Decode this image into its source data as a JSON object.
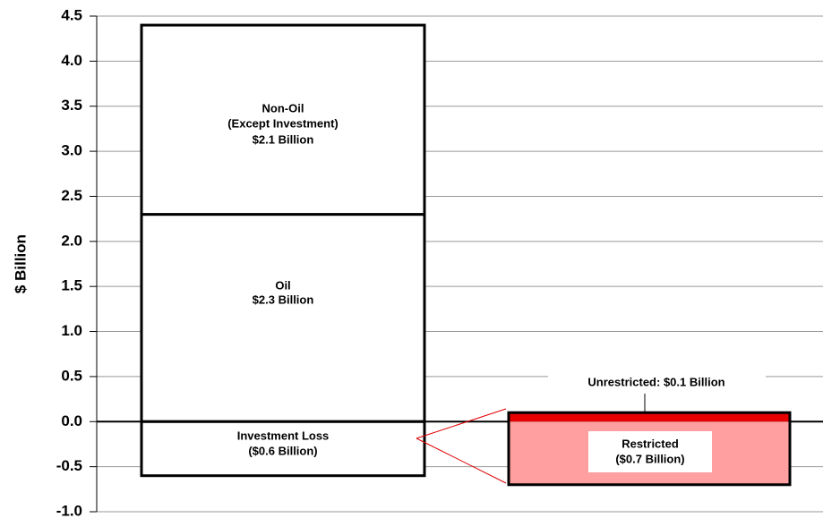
{
  "chart_data": {
    "type": "stacked-bar",
    "y_label": "$ Billion",
    "categories": [
      null,
      null
    ],
    "ylim": [
      -1.0,
      4.5
    ],
    "yticks": [
      {
        "value": -1,
        "label": "-1.0"
      },
      -0.5,
      {
        "value": 0,
        "label": "0.0"
      },
      0.5,
      {
        "value": 1,
        "label": "1.0"
      },
      1.5,
      {
        "value": 2,
        "label": "2.0"
      },
      2.5,
      {
        "value": 3,
        "label": "3.0"
      },
      3.5,
      {
        "value": 4,
        "label": "4.0"
      },
      4.5
    ],
    "grid": true,
    "series": [
      {
        "name": "Oil",
        "color": "#ffffff",
        "values": [
          2.3,
          null
        ],
        "value_labels": [
          "$2.3 Billion",
          null
        ]
      },
      {
        "name": "Non-Oil",
        "note": "(Except Investment)",
        "color": "#ffffff",
        "values": [
          2.1,
          null
        ],
        "value_labels": [
          "$2.1 Billion",
          null
        ]
      },
      {
        "name": "Investment Loss",
        "color": "#ffffff",
        "values": [
          -0.6,
          null
        ],
        "value_labels": [
          "($0.6 Billion)",
          null
        ]
      },
      {
        "color": "#e60000",
        "values": [
          null,
          0.1
        ],
        "value_labels": [
          null,
          "Unrestricted: $0.1 Billion"
        ]
      },
      {
        "name": "Restricted",
        "color": "#ff9f9f",
        "values": [
          null,
          -0.7
        ],
        "value_labels": [
          null,
          "($0.7 Billion)"
        ]
      }
    ]
  }
}
